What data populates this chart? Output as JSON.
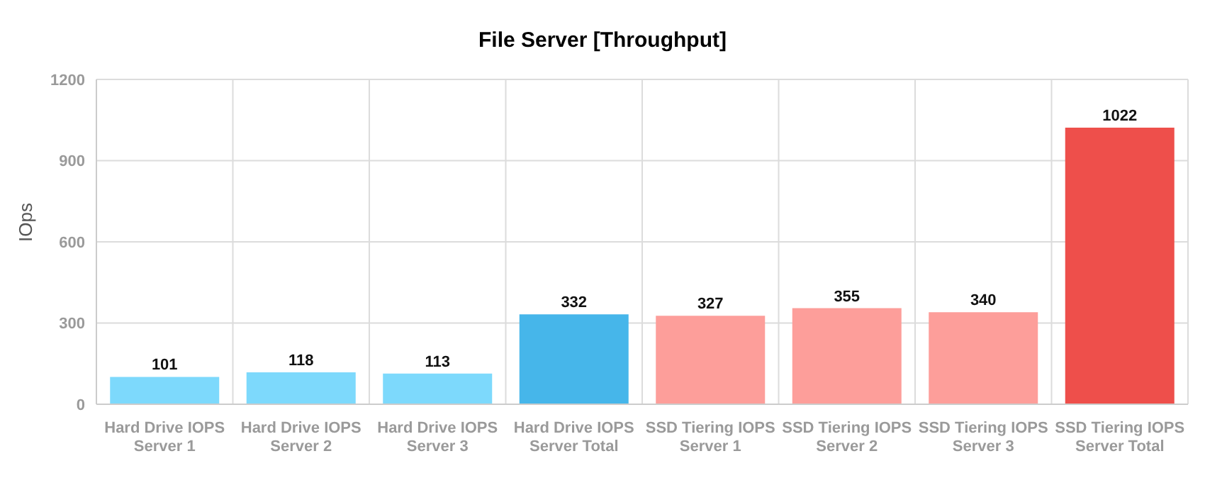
{
  "chart_data": {
    "type": "bar",
    "title": "File Server [Throughput]",
    "ylabel": "IOps",
    "categories": [
      "Hard Drive IOPS\nServer 1",
      "Hard Drive IOPS\nServer 2",
      "Hard Drive IOPS\nServer 3",
      "Hard Drive IOPS\nServer Total",
      "SSD Tiering IOPS\nServer 1",
      "SSD Tiering IOPS\nServer 2",
      "SSD Tiering IOPS\nServer 3",
      "SSD Tiering IOPS\nServer Total"
    ],
    "values": [
      101,
      118,
      113,
      332,
      327,
      355,
      340,
      1022
    ],
    "colors": [
      "#7dd9fc",
      "#7dd9fc",
      "#7dd9fc",
      "#46b6ea",
      "#fd9e9a",
      "#fd9e9a",
      "#fd9e9a",
      "#ee4f4b"
    ],
    "ylim": [
      0,
      1200
    ],
    "yticks": [
      0,
      300,
      600,
      900,
      1200
    ],
    "grid": true,
    "data_labels": true
  }
}
